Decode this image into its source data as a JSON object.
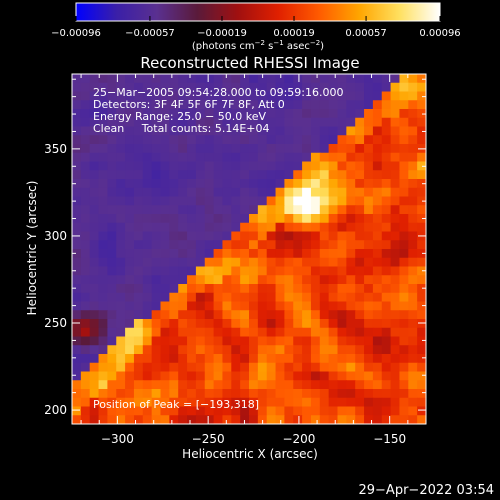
{
  "chart_data": {
    "type": "heatmap",
    "title": "Reconstructed RHESSI Image",
    "xlabel": "Heliocentric X (arcsec)",
    "ylabel": "Heliocentric Y (arcsec)",
    "xlim": [
      -325,
      -130
    ],
    "ylim": [
      192,
      393
    ],
    "xticks": [
      {
        "value": -300,
        "label": "−300"
      },
      {
        "value": -250,
        "label": "−250"
      },
      {
        "value": -200,
        "label": "−200"
      },
      {
        "value": -150,
        "label": "−150"
      }
    ],
    "yticks": [
      {
        "value": 200,
        "label": "200"
      },
      {
        "value": 250,
        "label": "250"
      },
      {
        "value": 300,
        "label": "300"
      },
      {
        "value": 350,
        "label": "350"
      }
    ],
    "colorbar": {
      "range": [
        -0.00096,
        0.00096
      ],
      "tick_labels": [
        "−0.00096",
        "−0.00057",
        "−0.00019",
        "0.00019",
        "0.00057",
        "0.00096"
      ],
      "tick_values": [
        -0.00096,
        -0.00057,
        -0.00019,
        0.00019,
        0.00057,
        0.00096
      ],
      "units_prefix": "(photons cm",
      "units_exp1": "−2",
      "units_mid1": " s",
      "units_exp2": "−1",
      "units_mid2": " asec",
      "units_exp3": "−2",
      "units_suffix": ")",
      "colors": [
        "#0000ff",
        "#3a1fa8",
        "#5a3090",
        "#5a1a3a",
        "#a01010",
        "#e02000",
        "#ff5a00",
        "#ffa500",
        "#ffe060",
        "#ffffff"
      ]
    },
    "annotations": [
      "25−Mar−2005 09:54:28.000 to 09:59:16.000",
      "Detectors: 3F 4F 5F 6F 7F 8F, Att 0",
      "Energy Range: 25.0 − 50.0 keV",
      "Clean     Total counts: 5.14E+04"
    ],
    "peak_label": "Position of Peak = [−193,318]",
    "peak": [
      -193,
      318
    ],
    "date_stamp": "29−Apr−2022 03:54"
  }
}
